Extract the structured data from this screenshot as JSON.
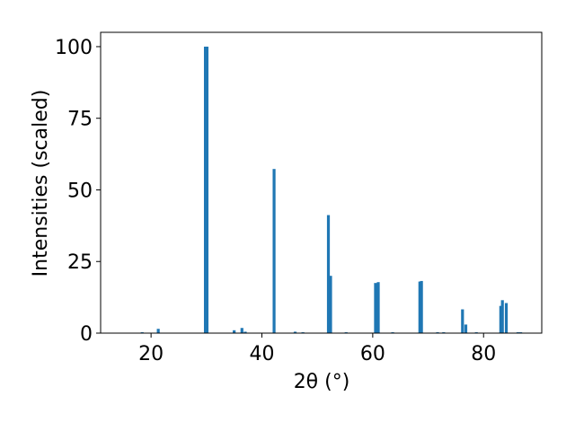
{
  "chart_data": {
    "type": "bar",
    "x": [
      18.4,
      21.3,
      29.8,
      30.1,
      35.0,
      36.4,
      37.0,
      42.2,
      46.0,
      47.4,
      52.0,
      52.4,
      55.2,
      60.5,
      61.0,
      63.6,
      68.5,
      68.8,
      71.7,
      72.8,
      76.2,
      76.8,
      78.7,
      83.1,
      83.4,
      84.1,
      86.2,
      86.7
    ],
    "values": [
      0.3,
      1.5,
      100,
      100,
      1.0,
      1.8,
      0.5,
      57.3,
      0.5,
      0.3,
      41.2,
      20.0,
      0.3,
      17.5,
      17.8,
      0.3,
      18.0,
      18.2,
      0.3,
      0.3,
      8.3,
      3.0,
      0.3,
      9.5,
      11.5,
      10.5,
      0.3,
      0.3
    ],
    "color": "#1f77b4",
    "xlabel": "2θ (°)",
    "ylabel": "Intensities (scaled)",
    "xlim": [
      10.9,
      90.5
    ],
    "xticks": [
      20,
      40,
      60,
      80
    ],
    "ylim": [
      0,
      105
    ],
    "yticks": [
      0,
      25,
      50,
      75,
      100
    ]
  }
}
